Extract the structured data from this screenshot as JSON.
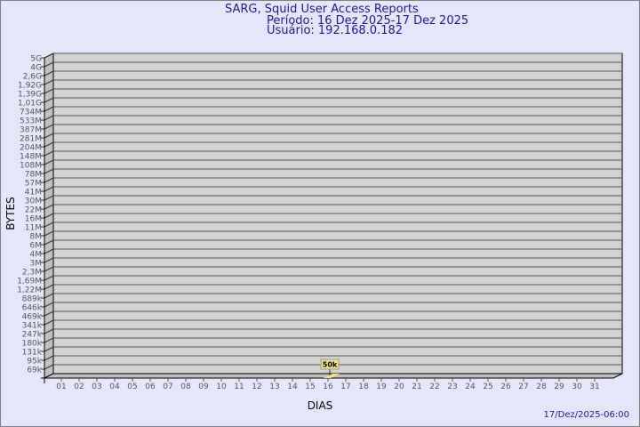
{
  "chart_data": {
    "type": "bar",
    "title": "SARG, Squid User Access Reports",
    "subtitle": [
      "Período: 16 Dez 2025-17 Dez 2025",
      "Usuário: 192.168.0.182"
    ],
    "xlabel": "DIAS",
    "ylabel": "BYTES",
    "y_scale": "log",
    "y_tick_labels": [
      "5G",
      "4G",
      "2,6G",
      "1,92G",
      "1,39G",
      "1,01G",
      "734M",
      "533M",
      "387M",
      "281M",
      "204M",
      "148M",
      "108M",
      "78M",
      "57M",
      "41M",
      "30M",
      "22M",
      "16M",
      "11M",
      "8M",
      "6M",
      "4M",
      "3M",
      "2,3M",
      "1,69M",
      "1,22M",
      "889k",
      "646k",
      "469k",
      "341k",
      "247k",
      "180k",
      "131k",
      "95k",
      "69k"
    ],
    "categories": [
      "01",
      "02",
      "03",
      "04",
      "05",
      "06",
      "07",
      "08",
      "09",
      "10",
      "11",
      "12",
      "13",
      "14",
      "15",
      "16",
      "17",
      "18",
      "19",
      "20",
      "21",
      "22",
      "23",
      "24",
      "25",
      "26",
      "27",
      "28",
      "29",
      "30",
      "31"
    ],
    "bars": [
      {
        "day": "16",
        "value": 50000,
        "label": "50k"
      }
    ],
    "grid": true,
    "colors": {
      "background": "#e6e6fa",
      "wall": "#d3d3d3",
      "side": "#c0c0c0",
      "bar": "#f5e38a",
      "title": "#1a1a8c"
    }
  },
  "footer": "17/Dez/2025-06:00"
}
